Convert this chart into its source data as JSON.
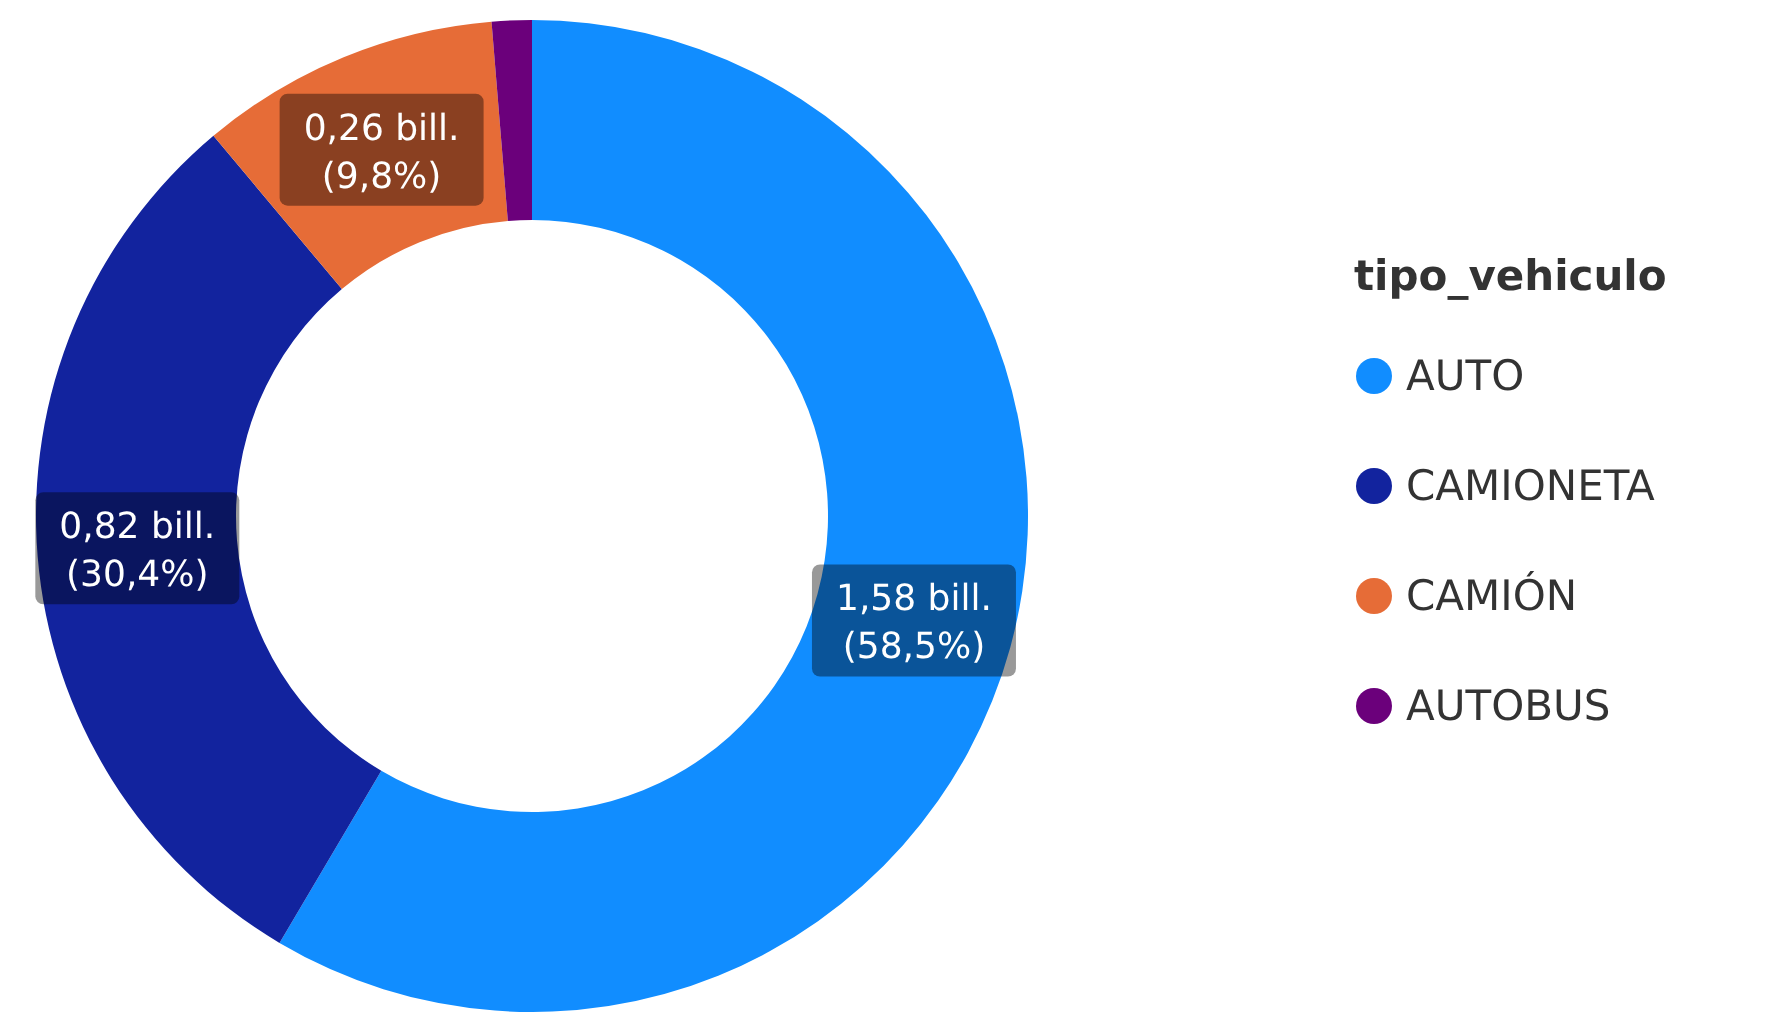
{
  "chart_data": {
    "type": "donut",
    "legend_title": "tipo_vehiculo",
    "legend": "right",
    "categories": [
      "AUTO",
      "CAMIONETA",
      "CAMIÓN",
      "AUTOBUS"
    ],
    "values": [
      58.5,
      30.4,
      9.8,
      1.3
    ],
    "colors": [
      "#118dff",
      "#12239e",
      "#e66c37",
      "#6b007b"
    ],
    "value_labels": [
      "1,58 bill. (58,5%)",
      "0,82 bill. (30,4%)",
      "0,26 bill. (9,8%)",
      null
    ]
  }
}
